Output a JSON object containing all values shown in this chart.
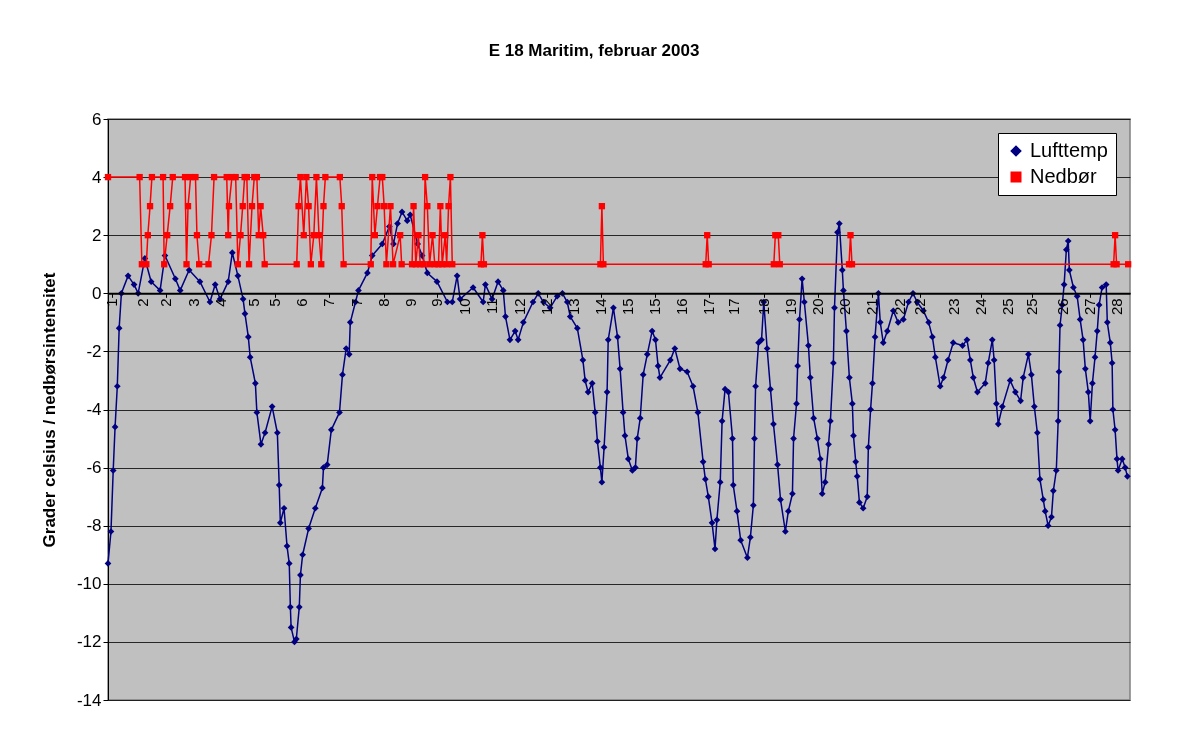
{
  "chart_data": {
    "type": "line",
    "title": "E 18 Maritim, februar 2003",
    "ylabel": "Grader celsius / nedbørsintensitet",
    "xlim": [
      0.62,
      28.08
    ],
    "xticks": [
      {
        "value": 0.73,
        "label": "1"
      },
      {
        "value": 1.55,
        "label": "2"
      },
      {
        "value": 2.19,
        "label": "2"
      },
      {
        "value": 2.92,
        "label": "3"
      },
      {
        "value": 3.65,
        "label": "4"
      },
      {
        "value": 4.55,
        "label": "5"
      },
      {
        "value": 5.11,
        "label": "5"
      },
      {
        "value": 5.84,
        "label": "6"
      },
      {
        "value": 6.57,
        "label": "7"
      },
      {
        "value": 7.3,
        "label": "7"
      },
      {
        "value": 8.03,
        "label": "8"
      },
      {
        "value": 8.76,
        "label": "9"
      },
      {
        "value": 9.45,
        "label": "9"
      },
      {
        "value": 10.22,
        "label": "10"
      },
      {
        "value": 10.95,
        "label": "11"
      },
      {
        "value": 11.68,
        "label": "12"
      },
      {
        "value": 12.41,
        "label": "12"
      },
      {
        "value": 13.14,
        "label": "13"
      },
      {
        "value": 13.86,
        "label": "14"
      },
      {
        "value": 14.59,
        "label": "15"
      },
      {
        "value": 15.32,
        "label": "15"
      },
      {
        "value": 16.05,
        "label": "16"
      },
      {
        "value": 16.78,
        "label": "17"
      },
      {
        "value": 17.45,
        "label": "17"
      },
      {
        "value": 18.24,
        "label": "18"
      },
      {
        "value": 18.97,
        "label": "19"
      },
      {
        "value": 19.7,
        "label": "20"
      },
      {
        "value": 20.43,
        "label": "20"
      },
      {
        "value": 21.16,
        "label": "21"
      },
      {
        "value": 21.89,
        "label": "22"
      },
      {
        "value": 22.45,
        "label": "22"
      },
      {
        "value": 23.35,
        "label": "23"
      },
      {
        "value": 24.08,
        "label": "24"
      },
      {
        "value": 24.81,
        "label": "25"
      },
      {
        "value": 25.45,
        "label": "25"
      },
      {
        "value": 26.27,
        "label": "26"
      },
      {
        "value": 27.0,
        "label": "27"
      },
      {
        "value": 27.73,
        "label": "28"
      }
    ],
    "ylim": [
      -14,
      6
    ],
    "yticks": [
      -14,
      -12,
      -10,
      -8,
      -6,
      -4,
      -2,
      0,
      2,
      4,
      6
    ],
    "grid": "y",
    "legend": "top right",
    "series": [
      {
        "name": "Lufttemp",
        "color": "#000080",
        "marker": "diamond",
        "x": [
          0.62,
          0.7,
          0.76,
          0.81,
          0.87,
          0.92,
          0.98,
          1.16,
          1.32,
          1.43,
          1.61,
          1.78,
          2.02,
          2.15,
          2.43,
          2.56,
          2.8,
          3.09,
          3.36,
          3.5,
          3.63,
          3.85,
          3.96,
          4.11,
          4.25,
          4.3,
          4.39,
          4.44,
          4.58,
          4.62,
          4.73,
          4.84,
          5.03,
          5.17,
          5.22,
          5.25,
          5.35,
          5.43,
          5.49,
          5.52,
          5.54,
          5.63,
          5.68,
          5.76,
          5.79,
          5.85,
          6.01,
          6.19,
          6.38,
          6.41,
          6.51,
          6.62,
          6.84,
          6.92,
          7.02,
          7.1,
          7.13,
          7.27,
          7.35,
          7.59,
          7.72,
          7.99,
          8.18,
          8.29,
          8.4,
          8.52,
          8.66,
          8.74,
          8.94,
          9.06,
          9.2,
          9.46,
          9.74,
          9.87,
          10.0,
          10.08,
          10.43,
          10.7,
          10.76,
          10.94,
          11.1,
          11.24,
          11.3,
          11.42,
          11.56,
          11.64,
          11.78,
          12.04,
          12.18,
          12.32,
          12.5,
          12.69,
          12.83,
          12.96,
          13.04,
          13.23,
          13.38,
          13.44,
          13.52,
          13.63,
          13.71,
          13.77,
          13.85,
          13.89,
          13.95,
          14.03,
          14.06,
          14.2,
          14.31,
          14.38,
          14.46,
          14.51,
          14.6,
          14.71,
          14.79,
          14.84,
          14.92,
          15.0,
          15.11,
          15.24,
          15.33,
          15.4,
          15.45,
          15.73,
          15.85,
          15.99,
          16.18,
          16.34,
          16.47,
          16.61,
          16.67,
          16.75,
          16.85,
          16.93,
          16.98,
          17.07,
          17.12,
          17.2,
          17.29,
          17.4,
          17.42,
          17.52,
          17.62,
          17.8,
          17.88,
          17.96,
          17.99,
          18.02,
          18.1,
          18.18,
          18.24,
          18.33,
          18.42,
          18.5,
          18.61,
          18.69,
          18.82,
          18.9,
          19.01,
          19.04,
          19.12,
          19.15,
          19.2,
          19.27,
          19.33,
          19.44,
          19.49,
          19.58,
          19.68,
          19.76,
          19.81,
          19.89,
          19.98,
          20.03,
          20.11,
          20.14,
          20.22,
          20.27,
          20.35,
          20.38,
          20.46,
          20.54,
          20.62,
          20.65,
          20.71,
          20.75,
          20.81,
          20.91,
          21.02,
          21.05,
          21.11,
          21.16,
          21.23,
          21.32,
          21.37,
          21.45,
          21.56,
          21.72,
          21.85,
          21.99,
          22.13,
          22.25,
          22.36,
          22.53,
          22.67,
          22.77,
          22.85,
          22.98,
          23.07,
          23.19,
          23.33,
          23.58,
          23.7,
          23.79,
          23.87,
          23.98,
          24.19,
          24.27,
          24.38,
          24.43,
          24.49,
          24.54,
          24.65,
          24.86,
          25.0,
          25.14,
          25.21,
          25.35,
          25.43,
          25.51,
          25.59,
          25.66,
          25.75,
          25.8,
          25.88,
          25.97,
          26.02,
          26.1,
          26.15,
          26.17,
          26.2,
          26.26,
          26.31,
          26.37,
          26.42,
          26.45,
          26.56,
          26.66,
          26.74,
          26.82,
          26.88,
          26.96,
          27.01,
          27.07,
          27.14,
          27.2,
          27.25,
          27.33,
          27.44,
          27.47,
          27.55,
          27.6,
          27.62,
          27.68,
          27.73,
          27.76,
          27.87,
          27.95,
          28.01
        ],
        "values": [
          -9.3,
          -8.2,
          -6.1,
          -4.6,
          -3.2,
          -1.2,
          0.0,
          0.6,
          0.3,
          0.0,
          1.2,
          0.4,
          0.1,
          1.3,
          0.5,
          0.1,
          0.8,
          0.4,
          -0.3,
          0.3,
          -0.2,
          0.4,
          1.4,
          0.6,
          -0.2,
          -0.7,
          -1.5,
          -2.2,
          -3.1,
          -4.1,
          -5.2,
          -4.8,
          -3.9,
          -4.8,
          -6.6,
          -7.9,
          -7.4,
          -8.7,
          -9.3,
          -10.8,
          -11.5,
          -12.0,
          -11.9,
          -10.8,
          -9.7,
          -9.0,
          -8.1,
          -7.4,
          -6.7,
          -6.0,
          -5.9,
          -4.7,
          -4.1,
          -2.8,
          -1.9,
          -2.1,
          -1.0,
          -0.3,
          0.1,
          0.7,
          1.3,
          1.7,
          2.3,
          1.7,
          2.4,
          2.8,
          2.5,
          2.7,
          1.7,
          1.3,
          0.7,
          0.4,
          -0.3,
          -0.3,
          0.6,
          -0.2,
          0.2,
          -0.3,
          0.3,
          -0.2,
          0.4,
          0.1,
          -0.8,
          -1.6,
          -1.3,
          -1.6,
          -1.0,
          -0.3,
          0.0,
          -0.3,
          -0.5,
          -0.1,
          0.0,
          -0.3,
          -0.8,
          -1.2,
          -2.3,
          -3.0,
          -3.4,
          -3.1,
          -4.1,
          -5.1,
          -6.0,
          -6.5,
          -5.3,
          -3.4,
          -1.6,
          -0.5,
          -1.5,
          -2.6,
          -4.1,
          -4.9,
          -5.7,
          -6.1,
          -6.0,
          -5.0,
          -4.3,
          -2.8,
          -2.1,
          -1.3,
          -1.6,
          -2.5,
          -2.9,
          -2.3,
          -1.9,
          -2.6,
          -2.7,
          -3.2,
          -4.1,
          -5.8,
          -6.4,
          -7.0,
          -7.9,
          -8.8,
          -7.8,
          -6.5,
          -4.4,
          -3.3,
          -3.4,
          -5.0,
          -6.6,
          -7.5,
          -8.5,
          -9.1,
          -8.4,
          -7.3,
          -5.0,
          -3.2,
          -1.7,
          -1.6,
          -0.3,
          -1.9,
          -3.3,
          -4.5,
          -5.9,
          -7.1,
          -8.2,
          -7.5,
          -6.9,
          -5.0,
          -3.8,
          -2.5,
          -0.9,
          0.5,
          -0.3,
          -1.8,
          -2.9,
          -4.3,
          -5.0,
          -5.7,
          -6.9,
          -6.5,
          -5.2,
          -4.4,
          -2.4,
          -0.5,
          2.1,
          2.4,
          0.8,
          0.1,
          -1.3,
          -2.9,
          -3.8,
          -4.9,
          -5.8,
          -6.3,
          -7.2,
          -7.4,
          -7.0,
          -5.3,
          -4.0,
          -3.1,
          -1.5,
          0.0,
          -1.0,
          -1.7,
          -1.3,
          -0.6,
          -1.0,
          -0.9,
          -0.3,
          0.0,
          -0.3,
          -0.6,
          -1.0,
          -1.5,
          -2.2,
          -3.2,
          -2.9,
          -2.3,
          -1.7,
          -1.8,
          -1.6,
          -2.3,
          -2.9,
          -3.4,
          -3.1,
          -2.4,
          -1.6,
          -2.3,
          -3.8,
          -4.5,
          -3.9,
          -3.0,
          -3.4,
          -3.7,
          -2.9,
          -2.1,
          -2.8,
          -3.9,
          -4.8,
          -6.4,
          -7.1,
          -7.5,
          -8.0,
          -7.7,
          -6.8,
          -6.1,
          -4.4,
          -2.7,
          -1.1,
          -0.4,
          0.3,
          1.5,
          1.8,
          0.8,
          0.2,
          -0.1,
          -0.9,
          -1.6,
          -2.6,
          -3.4,
          -4.4,
          -3.1,
          -2.2,
          -1.3,
          -0.4,
          0.2,
          0.3,
          -1.0,
          -1.7,
          -2.4,
          -4.0,
          -4.7,
          -5.7,
          -6.1,
          -5.7,
          -6.0,
          -6.3
        ]
      },
      {
        "name": "Nedbør",
        "color": "#ff0000",
        "marker": "square",
        "x": [
          0.62,
          1.47,
          1.53,
          1.65,
          1.69,
          1.75,
          1.8,
          2.1,
          2.13,
          2.21,
          2.29,
          2.36,
          2.69,
          2.73,
          2.77,
          2.84,
          2.97,
          3.01,
          3.07,
          3.32,
          3.4,
          3.47,
          3.81,
          3.85,
          3.87,
          3.95,
          4.05,
          4.11,
          4.18,
          4.24,
          4.29,
          4.35,
          4.41,
          4.49,
          4.55,
          4.62,
          4.67,
          4.72,
          4.79,
          4.83,
          5.69,
          5.74,
          5.79,
          5.88,
          5.95,
          6.01,
          6.07,
          6.15,
          6.22,
          6.29,
          6.35,
          6.41,
          6.46,
          6.85,
          6.9,
          6.95,
          7.68,
          7.72,
          7.79,
          7.86,
          7.93,
          7.99,
          8.04,
          8.1,
          8.21,
          8.28,
          8.47,
          8.51,
          8.79,
          8.83,
          8.89,
          8.96,
          9.01,
          9.1,
          9.14,
          9.2,
          9.26,
          9.34,
          9.4,
          9.5,
          9.55,
          9.6,
          9.68,
          9.72,
          9.77,
          9.82,
          9.87,
          10.64,
          10.68,
          10.72,
          13.85,
          13.89,
          13.93,
          16.68,
          16.72,
          16.76,
          18.51,
          18.55,
          18.63,
          18.67,
          20.53,
          20.57,
          20.61,
          27.64,
          27.68,
          27.72,
          28.03
        ],
        "values": [
          4,
          4,
          1,
          1,
          2,
          3,
          4,
          4,
          1,
          2,
          3,
          4,
          4,
          1,
          3,
          4,
          4,
          2,
          1,
          1,
          2,
          4,
          4,
          2,
          3,
          4,
          4,
          1,
          2,
          3,
          4,
          4,
          1,
          3,
          4,
          4,
          2,
          3,
          2,
          1,
          1,
          3,
          4,
          2,
          4,
          3,
          1,
          2,
          4,
          2,
          1,
          3,
          4,
          4,
          3,
          1,
          1,
          4,
          2,
          3,
          4,
          4,
          3,
          1,
          3,
          1,
          2,
          1,
          1,
          3,
          1,
          2,
          1,
          1,
          4,
          3,
          1,
          2,
          1,
          1,
          3,
          1,
          2,
          1,
          3,
          4,
          1,
          1,
          2,
          1,
          1,
          3,
          1,
          1,
          2,
          1,
          1,
          2,
          2,
          1,
          1,
          2,
          1,
          1,
          2,
          1,
          1
        ]
      }
    ]
  }
}
